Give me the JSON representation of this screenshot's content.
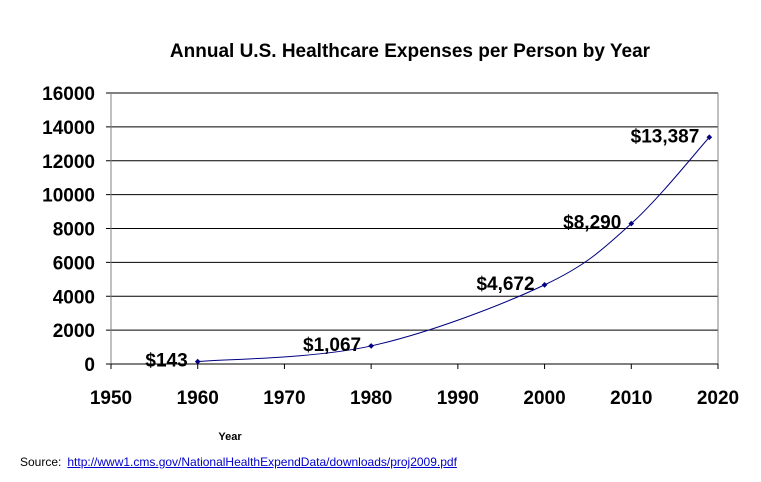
{
  "chart_data": {
    "type": "line",
    "title": "Annual U.S. Healthcare Expenses per Person by Year",
    "xlabel": "Year",
    "ylabel": "",
    "xlim": [
      1950,
      2020
    ],
    "ylim": [
      0,
      16000
    ],
    "x_ticks": [
      1950,
      1960,
      1970,
      1980,
      1990,
      2000,
      2010,
      2020
    ],
    "y_ticks": [
      0,
      2000,
      4000,
      6000,
      8000,
      10000,
      12000,
      14000,
      16000
    ],
    "grid": "horizontal",
    "smoothed": true,
    "line_color": "#000080",
    "x": [
      1960,
      1980,
      2000,
      2010,
      2019
    ],
    "values": [
      143,
      1067,
      4672,
      8290,
      13387
    ],
    "data_labels": [
      "$143",
      "$1,067",
      "$4,672",
      "$8,290",
      "$13,387"
    ]
  },
  "source": {
    "label": "Source:",
    "link": "http://www1.cms.gov/NationalHealthExpendData/downloads/proj2009.pdf"
  }
}
